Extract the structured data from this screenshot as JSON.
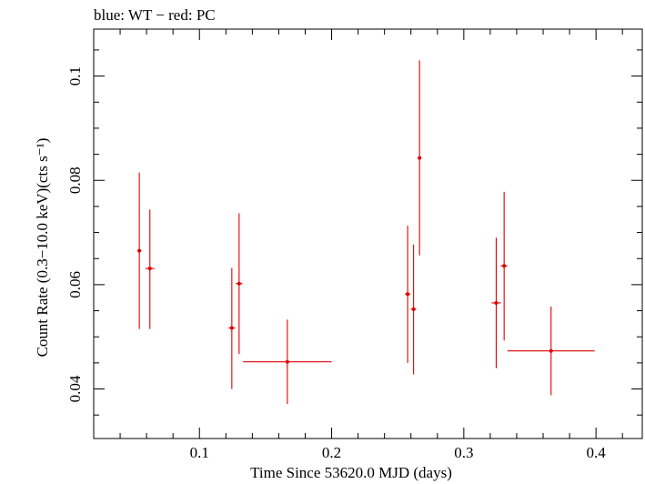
{
  "title": "blue: WT − red: PC",
  "chart_data": {
    "type": "scatter",
    "title": "blue: WT − red: PC",
    "xlabel": "Time Since 53620.0 MJD (days)",
    "ylabel": "Count Rate (0.3−10.0 keV)(cts s⁻¹)",
    "xlim": [
      0.02,
      0.435
    ],
    "ylim": [
      0.0305,
      0.109
    ],
    "x_ticks": [
      0.1,
      0.2,
      0.3,
      0.4
    ],
    "x_tick_labels": [
      "0.1",
      "0.2",
      "0.3",
      "0.4"
    ],
    "y_ticks": [
      0.04,
      0.06,
      0.08,
      0.1
    ],
    "y_tick_labels": [
      "0.04",
      "0.06",
      "0.08",
      "0.1"
    ],
    "grid": false,
    "series": [
      {
        "color": "#e00000",
        "points": [
          {
            "x": 0.0545,
            "y": 0.0665,
            "xerr": 0.0015,
            "yerr_lo": 0.015,
            "yerr_hi": 0.015
          },
          {
            "x": 0.0625,
            "y": 0.0631,
            "xerr": 0.0035,
            "yerr_lo": 0.0116,
            "yerr_hi": 0.0113
          },
          {
            "x": 0.1245,
            "y": 0.0517,
            "xerr": 0.0025,
            "yerr_lo": 0.0117,
            "yerr_hi": 0.0115
          },
          {
            "x": 0.13,
            "y": 0.0602,
            "xerr": 0.0025,
            "yerr_lo": 0.0135,
            "yerr_hi": 0.0135
          },
          {
            "x": 0.1665,
            "y": 0.0452,
            "xerr": 0.0335,
            "yerr_lo": 0.0081,
            "yerr_hi": 0.0081
          },
          {
            "x": 0.2575,
            "y": 0.0582,
            "xerr": 0.002,
            "yerr_lo": 0.0132,
            "yerr_hi": 0.0131
          },
          {
            "x": 0.262,
            "y": 0.0553,
            "xerr": 0.002,
            "yerr_lo": 0.0125,
            "yerr_hi": 0.0124
          },
          {
            "x": 0.2665,
            "y": 0.0843,
            "xerr": 0.0015,
            "yerr_lo": 0.0187,
            "yerr_hi": 0.0187
          },
          {
            "x": 0.3245,
            "y": 0.0565,
            "xerr": 0.0035,
            "yerr_lo": 0.0125,
            "yerr_hi": 0.0125
          },
          {
            "x": 0.3305,
            "y": 0.0636,
            "xerr": 0.0025,
            "yerr_lo": 0.0143,
            "yerr_hi": 0.0142
          },
          {
            "x": 0.366,
            "y": 0.0473,
            "xerr": 0.033,
            "yerr_lo": 0.0085,
            "yerr_hi": 0.0085
          }
        ]
      }
    ]
  }
}
